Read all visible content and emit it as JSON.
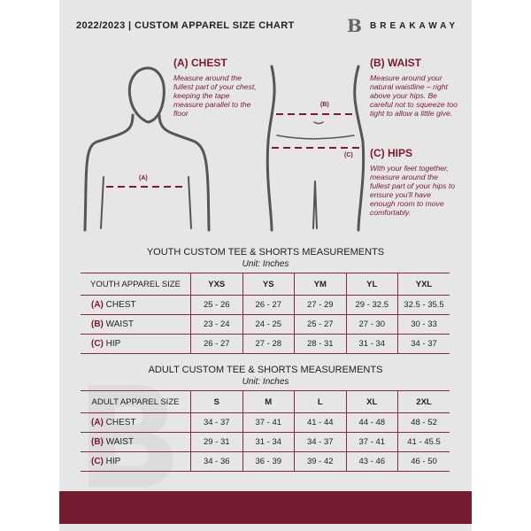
{
  "header": {
    "title": "2022/2023  |  CUSTOM APPAREL SIZE CHART",
    "brand": "BREAKAWAY",
    "logo_letter": "B"
  },
  "measures": {
    "chest": {
      "title": "(A) CHEST",
      "text": "Measure around the fullest part of your chest, keeping the tape measure parallel to the floor",
      "marker": "(A)"
    },
    "waist": {
      "title": "(B) WAIST",
      "text": "Measure around your natural waistline – right above your hips. Be careful not to squeeze too tight to allow a little give.",
      "marker": "(B)"
    },
    "hips": {
      "title": "(C) HIPS",
      "text": "With your feet together, measure around the fullest part of your hips to ensure you'll have enough room to move comfortably.",
      "marker": "(C)"
    }
  },
  "colors": {
    "accent": "#741b2f",
    "background": "#e6e6e7"
  },
  "youth": {
    "title": "YOUTH CUSTOM TEE & SHORTS MEASUREMENTS",
    "unit": "Unit: Inches",
    "header": "YOUTH APPAREL SIZE",
    "sizes": [
      "YXS",
      "YS",
      "YM",
      "YL",
      "YXL"
    ],
    "rows": [
      {
        "key": "(A)",
        "label": "CHEST",
        "values": [
          "25 - 26",
          "26 - 27",
          "27 - 29",
          "29 - 32.5",
          "32.5 - 35.5"
        ]
      },
      {
        "key": "(B)",
        "label": "WAIST",
        "values": [
          "23 - 24",
          "24 - 25",
          "25 - 27",
          "27 - 30",
          "30 - 33"
        ]
      },
      {
        "key": "(C)",
        "label": "HIP",
        "values": [
          "26 - 27",
          "27 - 28",
          "28 - 31",
          "31 - 34",
          "34 - 37"
        ]
      }
    ]
  },
  "adult": {
    "title": "ADULT CUSTOM TEE & SHORTS MEASUREMENTS",
    "unit": "Unit: Inches",
    "header": "ADULT APPAREL SIZE",
    "sizes": [
      "S",
      "M",
      "L",
      "XL",
      "2XL"
    ],
    "rows": [
      {
        "key": "(A)",
        "label": "CHEST",
        "values": [
          "34 - 37",
          "37 - 41",
          "41 - 44",
          "44 - 48",
          "48 - 52"
        ]
      },
      {
        "key": "(B)",
        "label": "WAIST",
        "values": [
          "29 - 31",
          "31 - 34",
          "34 - 37",
          "37 - 41",
          "41 - 45.5"
        ]
      },
      {
        "key": "(C)",
        "label": "HIP",
        "values": [
          "34 - 36",
          "36 - 39",
          "39 - 42",
          "43 - 46",
          "46 - 50"
        ]
      }
    ]
  }
}
